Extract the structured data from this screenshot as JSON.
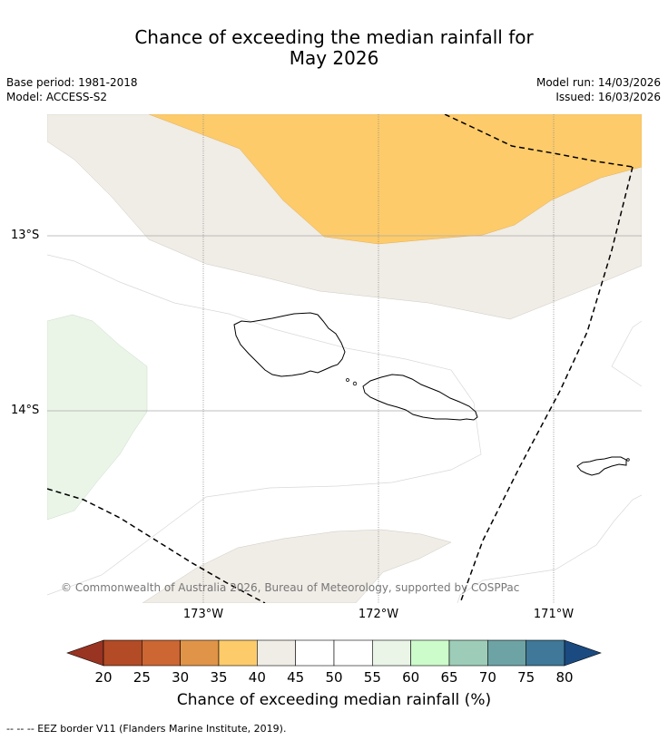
{
  "title": {
    "line1": "Chance of exceeding the median rainfall for",
    "line2": "May 2026"
  },
  "meta": {
    "base_period": "Base period: 1981-2018",
    "model": "Model: ACCESS-S2",
    "model_run": "Model run: 14/03/2026",
    "issued": "Issued: 16/03/2026"
  },
  "map": {
    "lat_labels": [
      "13°S",
      "14°S"
    ],
    "lon_labels": [
      "173°W",
      "172°W",
      "171°W"
    ],
    "copyright": "© Commonwealth of Australia 2026, Bureau of Meteorology, supported by COSPPac"
  },
  "colorbar": {
    "ticks": [
      "20",
      "25",
      "30",
      "35",
      "40",
      "45",
      "50",
      "55",
      "60",
      "65",
      "70",
      "75",
      "80"
    ],
    "colors": [
      "#b24b26",
      "#cc6633",
      "#e09448",
      "#fdcb6a",
      "#f0ece6",
      "#ffffff",
      "#ffffff",
      "#eaf5e8",
      "#ccfcca",
      "#9dcdb8",
      "#6ea3a5",
      "#3f7898"
    ],
    "under_color": "#993322",
    "over_color": "#1a4a80",
    "label": "Chance of exceeding median rainfall (%)"
  },
  "footnote": "--  --  -- EEZ border V11 (Flanders Marine Institute, 2019)."
}
